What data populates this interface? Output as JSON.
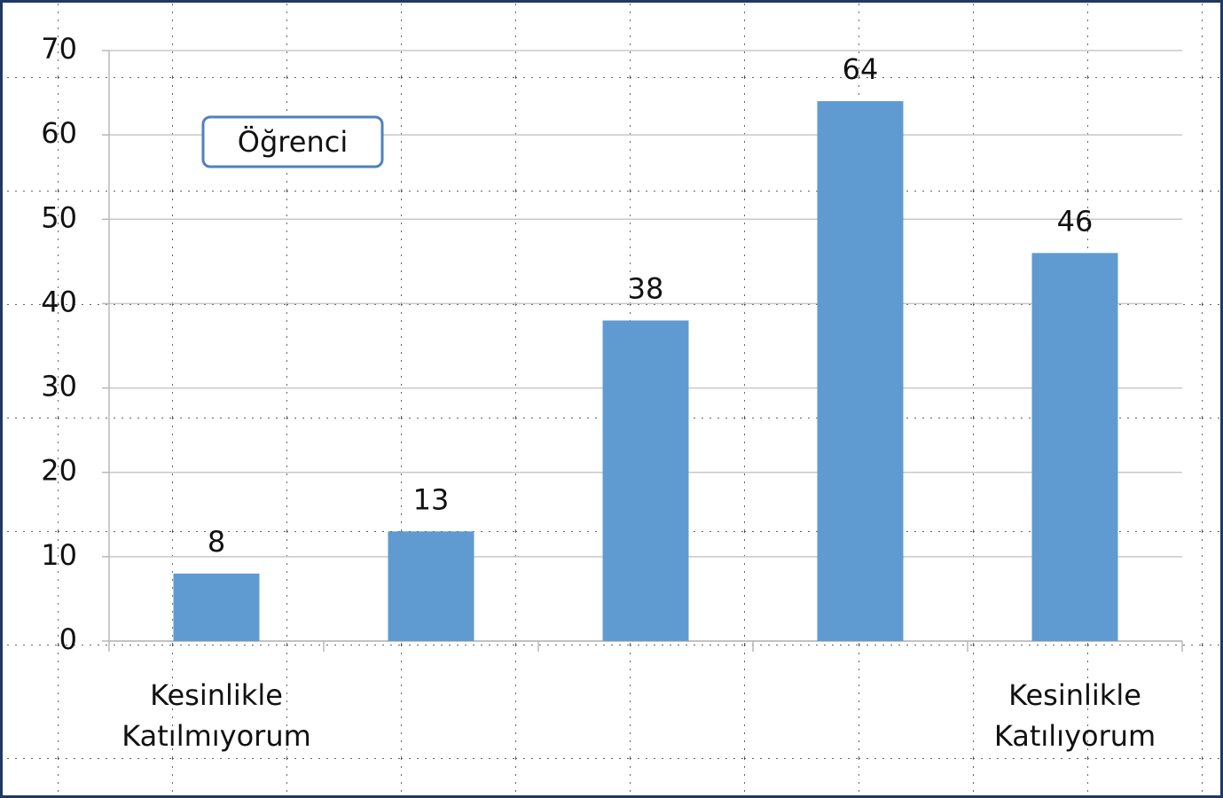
{
  "chart_data": {
    "type": "bar",
    "categories": [
      "Kesinlikle Katılmıyorum",
      null,
      null,
      null,
      "Kesinlikle Katılıyorum"
    ],
    "series": [
      {
        "name": "Öğrenci",
        "color": "#5f9bd1",
        "values": [
          8,
          13,
          38,
          64,
          46
        ]
      }
    ],
    "ylim": [
      0,
      70
    ],
    "yticks": [
      0,
      10,
      20,
      30,
      40,
      50,
      60,
      70
    ],
    "grid": true,
    "legend": "upper left"
  }
}
